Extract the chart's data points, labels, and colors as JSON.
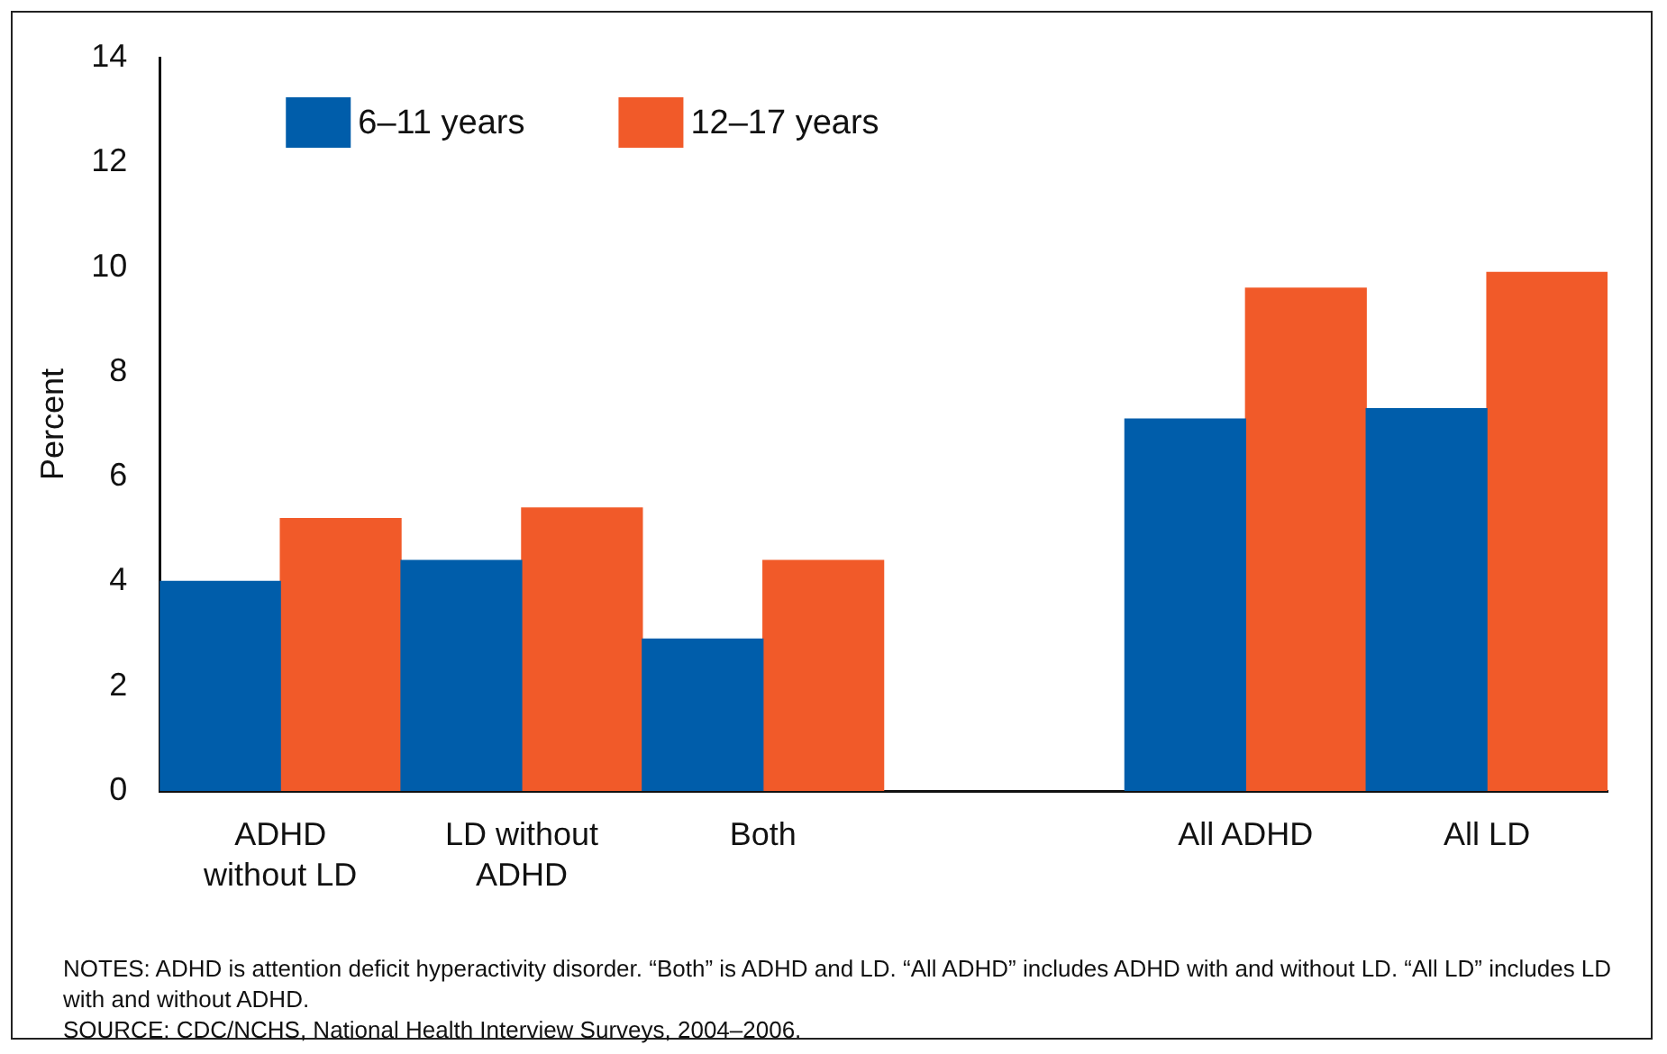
{
  "chart_data": {
    "type": "bar",
    "ylabel": "Percent",
    "categories": [
      "ADHD without LD",
      "LD without ADHD",
      "Both",
      null,
      "All ADHD",
      "All LD"
    ],
    "series": [
      {
        "name": "6–11 years",
        "color": "#005daa",
        "values": [
          4.0,
          4.4,
          2.9,
          null,
          7.1,
          7.3
        ]
      },
      {
        "name": "12–17 years",
        "color": "#f15a29",
        "values": [
          5.2,
          5.4,
          4.4,
          null,
          9.6,
          9.9
        ]
      }
    ],
    "ylim": [
      0,
      14
    ],
    "yticks": [
      0,
      2,
      4,
      6,
      8,
      10,
      12,
      14
    ],
    "legend": "top left",
    "annotations": [
      "NOTES: ADHD is attention deficit hyperactivity disorder. “Both” is ADHD and LD. “All ADHD” includes ADHD with and without LD. “All LD” includes LD with and without ADHD.",
      "SOURCE: CDC/NCHS, National Health Interview Surveys, 2004–2006."
    ]
  }
}
